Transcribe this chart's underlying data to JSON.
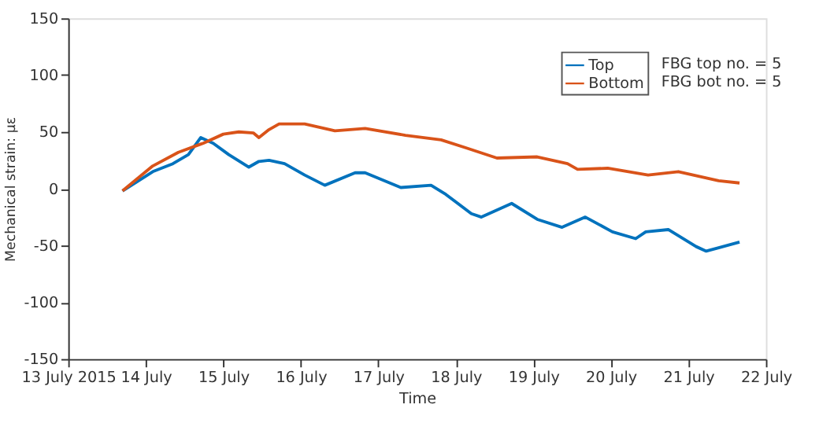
{
  "chart_data": {
    "type": "line",
    "xlabel": "Time",
    "ylabel": "Mechanical strain: με",
    "annotations": [
      "FBG top no. = 5",
      "FBG bot no. = 5"
    ],
    "series": [
      {
        "name": "Top",
        "color": "#0072bd",
        "x": [
          "2015-07-13T16:48",
          "2015-07-14T02:10",
          "2015-07-14T08:24",
          "2015-07-14T13:12",
          "2015-07-14T17:02",
          "2015-07-14T20:53",
          "2015-07-15T01:41",
          "2015-07-15T07:55",
          "2015-07-15T11:02",
          "2015-07-15T14:10",
          "2015-07-15T18:58",
          "2015-07-16T01:12",
          "2015-07-16T07:26",
          "2015-07-16T16:48",
          "2015-07-16T19:55",
          "2015-07-17T06:58",
          "2015-07-17T16:19",
          "2015-07-17T20:53",
          "2015-07-18T04:48",
          "2015-07-18T07:55",
          "2015-07-18T17:17",
          "2015-07-19T01:12",
          "2015-07-19T08:53",
          "2015-07-19T16:05",
          "2015-07-20T00:29",
          "2015-07-20T07:41",
          "2015-07-20T10:48",
          "2015-07-20T17:46",
          "2015-07-21T02:24",
          "2015-07-21T05:31",
          "2015-07-21T09:22",
          "2015-07-21T15:50"
        ],
        "values": [
          -2,
          15,
          22,
          30,
          45,
          40,
          30,
          19,
          24,
          25,
          22,
          12,
          3,
          14,
          14,
          1,
          3,
          -5,
          -22,
          -25,
          -13,
          -27,
          -34,
          -25,
          -38,
          -44,
          -38,
          -36,
          -51,
          -55,
          -52,
          -47
        ]
      },
      {
        "name": "Bottom",
        "color": "#d95319",
        "x": [
          "2015-07-13T16:48",
          "2015-07-14T02:10",
          "2015-07-14T10:05",
          "2015-07-14T17:46",
          "2015-07-15T00:00",
          "2015-07-15T04:48",
          "2015-07-15T09:22",
          "2015-07-15T11:02",
          "2015-07-15T14:10",
          "2015-07-15T17:17",
          "2015-07-16T01:12",
          "2015-07-16T10:34",
          "2015-07-16T19:55",
          "2015-07-17T08:24",
          "2015-07-17T19:26",
          "2015-07-18T03:07",
          "2015-07-18T12:43",
          "2015-07-19T01:12",
          "2015-07-19T10:34",
          "2015-07-19T13:41",
          "2015-07-19T23:02",
          "2015-07-20T11:31",
          "2015-07-20T20:53",
          "2015-07-21T09:22",
          "2015-07-21T15:50"
        ],
        "values": [
          -2,
          20,
          32,
          40,
          48,
          50,
          49,
          45,
          52,
          57,
          57,
          51,
          53,
          47,
          43,
          36,
          27,
          28,
          22,
          17,
          18,
          12,
          15,
          7,
          5
        ]
      }
    ],
    "xlim": [
      "2015-07-13",
      "2015-07-22"
    ],
    "xticks": [
      {
        "value": "2015-07-13",
        "label": "13 July 2015"
      },
      {
        "value": "2015-07-14",
        "label": "14 July"
      },
      {
        "value": "2015-07-15",
        "label": "15 July"
      },
      {
        "value": "2015-07-16",
        "label": "16 July"
      },
      {
        "value": "2015-07-17",
        "label": "17 July"
      },
      {
        "value": "2015-07-18",
        "label": "18 July"
      },
      {
        "value": "2015-07-19",
        "label": "19 July"
      },
      {
        "value": "2015-07-20",
        "label": "20 July"
      },
      {
        "value": "2015-07-21",
        "label": "21 July"
      },
      {
        "value": "2015-07-22",
        "label": "22 July"
      }
    ],
    "ylim": [
      -150,
      150
    ],
    "yticks": [
      -150,
      -100,
      -50,
      0,
      50,
      100,
      150
    ],
    "grid": false,
    "legend": "top right",
    "marker": "none",
    "line_style": "solid"
  }
}
